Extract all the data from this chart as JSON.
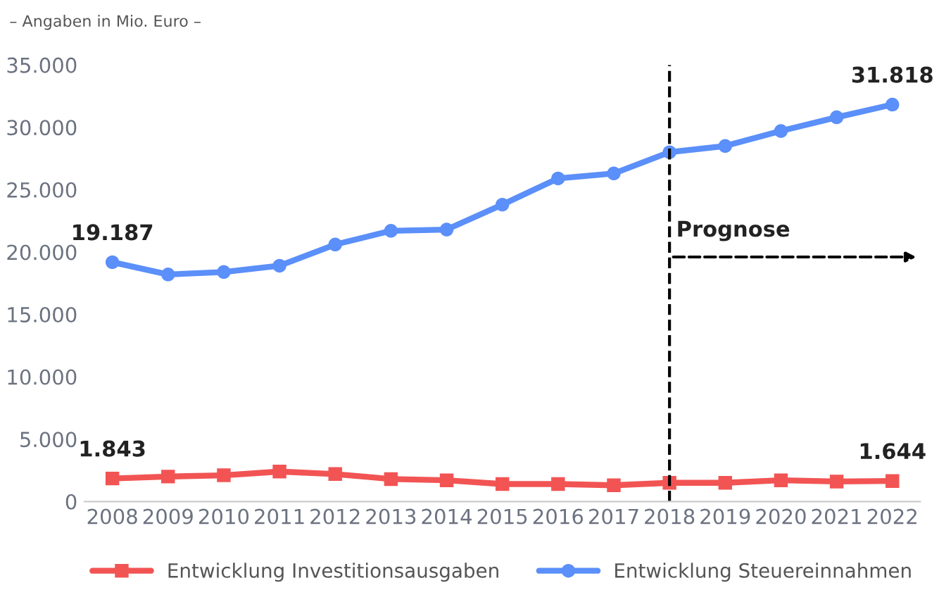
{
  "chart_data": {
    "type": "line",
    "annotations": [
      "– Angaben in Mio. Euro –"
    ],
    "categories": [
      "2008",
      "2009",
      "2010",
      "2011",
      "2012",
      "2013",
      "2014",
      "2015",
      "2016",
      "2017",
      "2018",
      "2019",
      "2020",
      "2021",
      "2022"
    ],
    "series": [
      {
        "name": "Entwicklung Investitionsausgaben",
        "color": "#f25454",
        "marker": "square",
        "values": [
          1843,
          2000,
          2100,
          2400,
          2200,
          1800,
          1700,
          1400,
          1400,
          1300,
          1500,
          1500,
          1700,
          1600,
          1644
        ],
        "value_labels": [
          "1.843",
          null,
          null,
          null,
          null,
          null,
          null,
          null,
          null,
          null,
          null,
          null,
          null,
          null,
          "1.644"
        ]
      },
      {
        "name": "Entwicklung Steuereinnahmen",
        "color": "#5b8ff9",
        "marker": "circle",
        "values": [
          19187,
          18200,
          18400,
          18900,
          20600,
          21700,
          21800,
          23800,
          25900,
          26300,
          28000,
          28500,
          29700,
          30800,
          31818
        ],
        "value_labels": [
          "19.187",
          null,
          null,
          null,
          null,
          null,
          null,
          null,
          null,
          null,
          null,
          null,
          null,
          null,
          "31.818"
        ]
      }
    ],
    "ylim": [
      0,
      35000
    ],
    "yticks": [
      {
        "value": 0,
        "label": "0"
      },
      {
        "value": 5000,
        "label": "5.000"
      },
      {
        "value": 10000,
        "label": "10.000"
      },
      {
        "value": 15000,
        "label": "15.000"
      },
      {
        "value": 20000,
        "label": "20.000"
      },
      {
        "value": 25000,
        "label": "25.000"
      },
      {
        "value": 30000,
        "label": "30.000"
      },
      {
        "value": 35000,
        "label": "35.000"
      }
    ],
    "ref_lines": [
      {
        "axis": "x",
        "value": "2018",
        "label": "Prognose",
        "color": "#000000",
        "line_style": "dashed"
      }
    ],
    "legend": "bottom",
    "grid": false,
    "line_style": "solid"
  }
}
